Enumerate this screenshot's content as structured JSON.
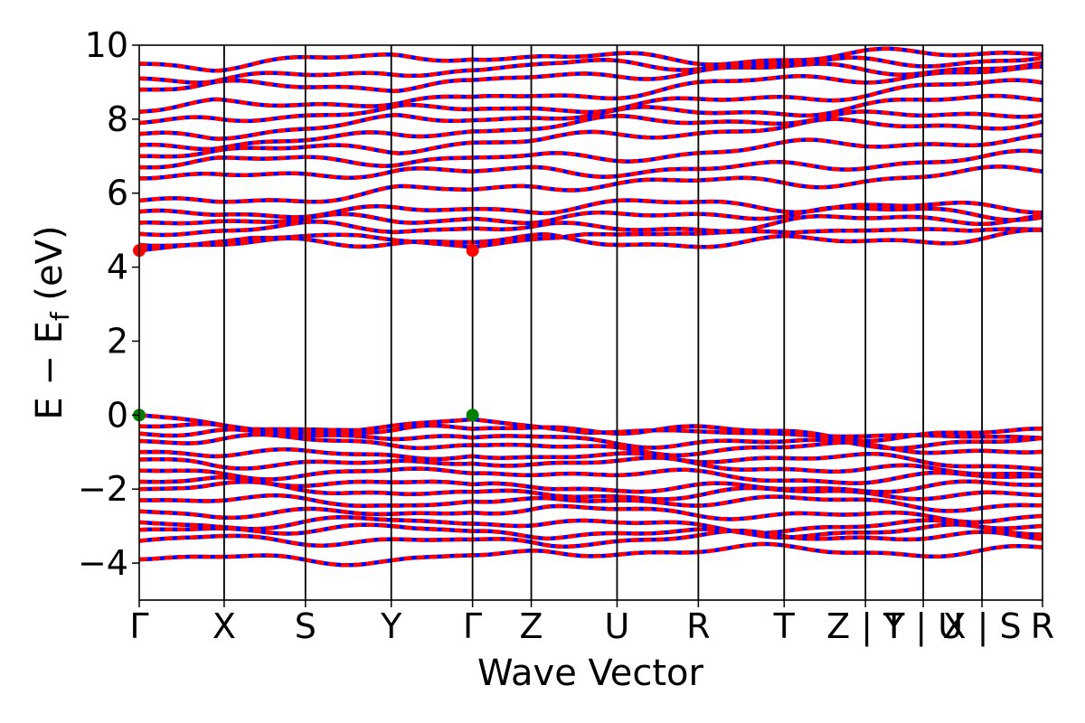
{
  "chart_data": {
    "type": "line",
    "title": "",
    "xlabel": "Wave Vector",
    "ylabel": "E − E",
    "ylabel_subscript": "f",
    "ylabel_unit": "(eV)",
    "ylim": [
      -5,
      10
    ],
    "yticks": [
      -4,
      -2,
      0,
      2,
      4,
      6,
      8,
      10
    ],
    "ytick_labels": [
      "−4",
      "−2",
      "0",
      "2",
      "4",
      "6",
      "8",
      "10"
    ],
    "kpath_positions": [
      0,
      0.094,
      0.184,
      0.279,
      0.369,
      0.434,
      0.529,
      0.619,
      0.714,
      0.804,
      0.868,
      0.933,
      1.0
    ],
    "kpath_labels": [
      "Γ",
      "X",
      "S",
      "Y",
      "Γ",
      "Z",
      "U",
      "R",
      "T",
      "Z | Y",
      "T | U",
      "X | S",
      "R"
    ],
    "series_colors": {
      "spin_up": "#0000ff",
      "spin_down": "#ff0000"
    },
    "valence_band_max": {
      "energy": 0.0,
      "k": [
        0,
        0.369
      ],
      "color": "#008000"
    },
    "conduction_band_min": {
      "energy": 4.45,
      "k": [
        0,
        0.369
      ],
      "color": "#ff0000"
    },
    "band_gap_ev": 4.45,
    "valence_bands_gamma": [
      0.0,
      -0.3,
      -0.5,
      -0.7,
      -1.0,
      -1.2,
      -1.5,
      -1.8,
      -2.0,
      -2.3,
      -2.6,
      -2.9,
      -3.1,
      -3.4,
      -3.9
    ],
    "valence_bands_endpoint": [
      -0.3,
      -0.5,
      -0.8,
      -1.0,
      -1.3,
      -1.5,
      -1.7,
      -2.0,
      -2.2,
      -2.4,
      -2.7,
      -3.0,
      -3.2,
      -3.3,
      -3.6
    ],
    "conduction_bands_gamma": [
      4.45,
      4.6,
      4.9,
      5.2,
      5.5,
      5.8,
      6.4,
      6.7,
      7.0,
      7.3,
      7.6,
      7.9,
      8.2,
      8.8,
      9.1,
      9.5
    ],
    "conduction_bands_endpoint": [
      4.7,
      4.8,
      5.3,
      5.5,
      5.7,
      6.6,
      6.9,
      7.4,
      8.0,
      8.3,
      8.6,
      8.9,
      9.3,
      9.5,
      9.7,
      9.8
    ]
  }
}
